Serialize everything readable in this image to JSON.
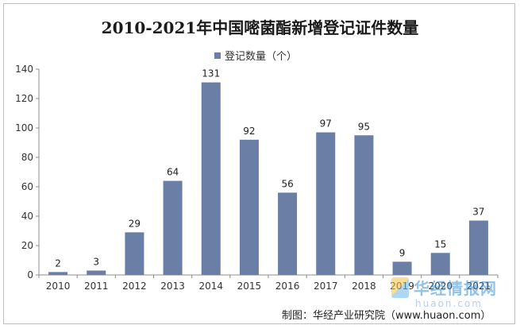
{
  "chart_data": {
    "type": "bar",
    "title": "2010-2021年中国嘧菌酯新增登记证件数量",
    "legend": "登记数量（个）",
    "categories": [
      "2010",
      "2011",
      "2012",
      "2013",
      "2014",
      "2015",
      "2016",
      "2017",
      "2018",
      "2019",
      "2020",
      "2021"
    ],
    "series": [
      {
        "name": "登记数量（个）",
        "values": [
          2,
          3,
          29,
          64,
          131,
          92,
          56,
          97,
          95,
          9,
          15,
          37
        ]
      }
    ],
    "ylim": [
      0,
      140
    ],
    "yticks": [
      0,
      20,
      40,
      60,
      80,
      100,
      120,
      140
    ],
    "data_labels": true,
    "legend_position": "top-center",
    "grid": false,
    "bar_color": "#6b7fa6"
  },
  "footer": {
    "credit": "制图：华经产业研究院（www.huaon.com）"
  },
  "watermark": {
    "name": "华经情报网",
    "url": "huaon.com"
  }
}
